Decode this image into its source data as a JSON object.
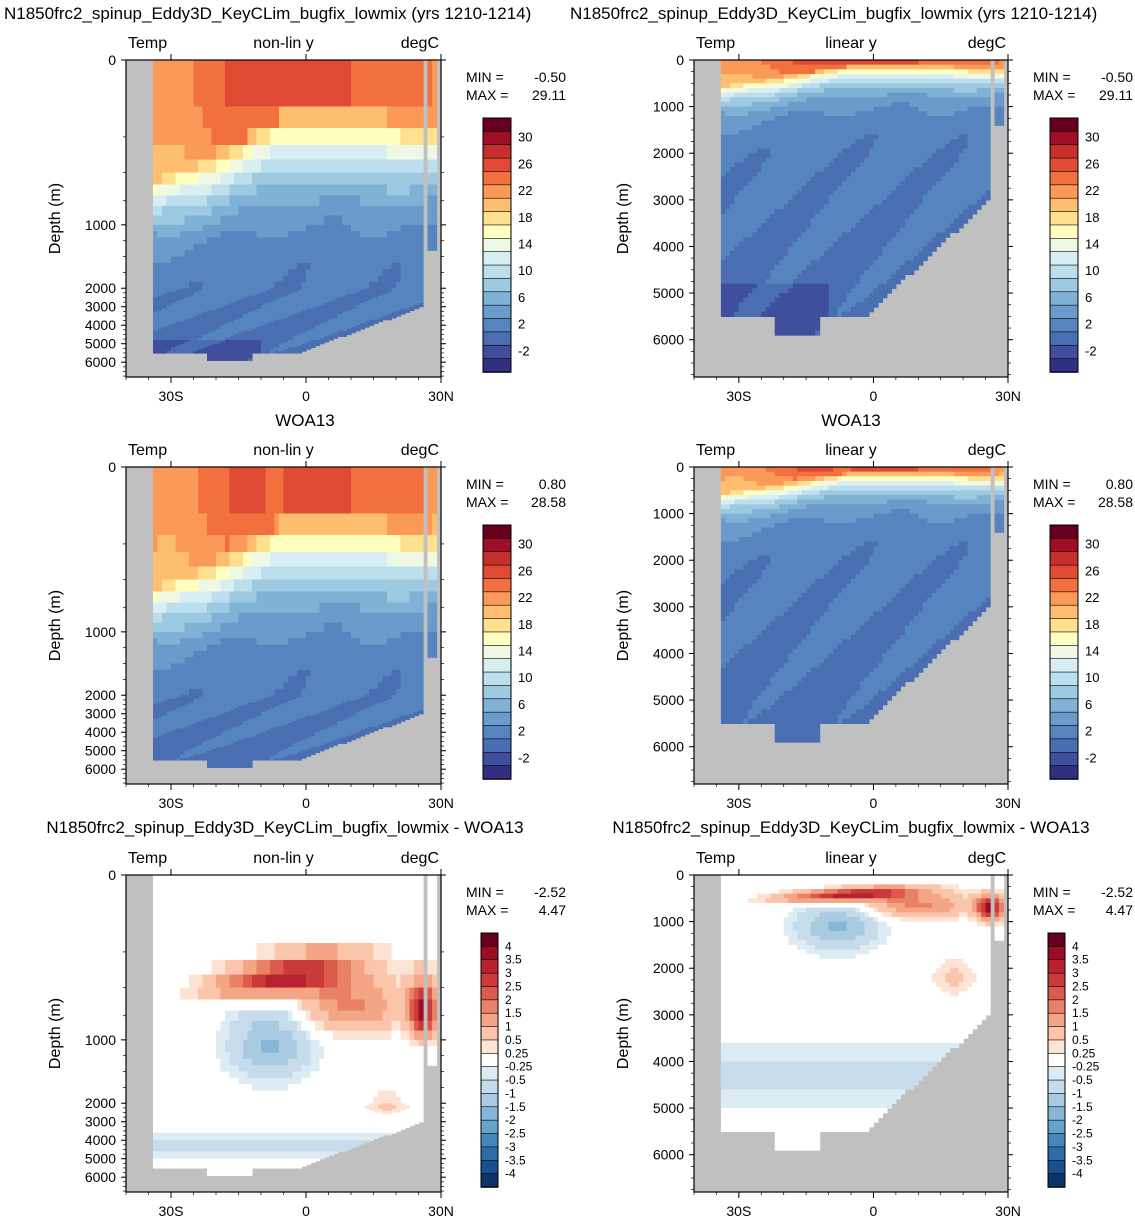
{
  "titles": {
    "row1_left": "N1850frc2_spinup_Eddy3D_KeyCLim_bugfix_lowmix (yrs 1210-1214)",
    "row1_right": "N1850frc2_spinup_Eddy3D_KeyCLim_bugfix_lowmix (yrs 1210-1214)",
    "row2_left": "WOA13",
    "row2_right": "WOA13",
    "row3_left": "N1850frc2_spinup_Eddy3D_KeyCLim_bugfix_lowmix - WOA13",
    "row3_right": "N1850frc2_spinup_Eddy3D_KeyCLim_bugfix_lowmix - WOA13"
  },
  "labels": {
    "variable": "Temp",
    "units": "degC",
    "nonlin": "non-lin y",
    "linear": "linear y",
    "ylabel": "Depth (m)",
    "min_label": "MIN =",
    "max_label": "MAX ="
  },
  "stats": {
    "model": {
      "min": "-0.50",
      "max": "29.11"
    },
    "obs": {
      "min": "0.80",
      "max": "28.58"
    },
    "diff": {
      "min": "-2.52",
      "max": "4.47"
    }
  },
  "x_ticks": [
    "30S",
    "0",
    "30N"
  ],
  "colors": {
    "land": "#c0c0c0"
  },
  "chart_data": {
    "type": "heatmap",
    "x_range_lat": [
      -40,
      30
    ],
    "y_range_depth_m": [
      0,
      6800
    ],
    "panels": [
      {
        "row": 1,
        "col": 1,
        "scale": "non-lin y",
        "field": "model",
        "min": -0.5,
        "max": 29.11
      },
      {
        "row": 1,
        "col": 2,
        "scale": "linear y",
        "field": "model",
        "min": -0.5,
        "max": 29.11
      },
      {
        "row": 2,
        "col": 1,
        "scale": "non-lin y",
        "field": "obs",
        "min": 0.8,
        "max": 28.58
      },
      {
        "row": 2,
        "col": 2,
        "scale": "linear y",
        "field": "obs",
        "min": 0.8,
        "max": 28.58
      },
      {
        "row": 3,
        "col": 1,
        "scale": "non-lin y",
        "field": "diff",
        "min": -2.52,
        "max": 4.47
      },
      {
        "row": 3,
        "col": 2,
        "scale": "linear y",
        "field": "diff",
        "min": -2.52,
        "max": 4.47
      }
    ],
    "yticks_nonlin": [
      "0",
      "1000",
      "2000",
      "3000",
      "4000",
      "5000",
      "6000"
    ],
    "yticks_linear": [
      "0",
      "1000",
      "2000",
      "3000",
      "4000",
      "5000",
      "6000"
    ],
    "temp_colorbar": {
      "labels": [
        "30",
        "26",
        "22",
        "18",
        "14",
        "10",
        "6",
        "2",
        "-2"
      ],
      "colors": [
        "#67001f",
        "#9e0e26",
        "#c62f2c",
        "#e04a34",
        "#f2703e",
        "#fb9a58",
        "#fdbe70",
        "#fee08f",
        "#ffffbf",
        "#eef8e4",
        "#d9eef3",
        "#bcdfed",
        "#9ecae1",
        "#80b2d6",
        "#6a9bcb",
        "#5684bf",
        "#4a6eb2",
        "#3f4f9e",
        "#312f80"
      ]
    },
    "diff_colorbar": {
      "labels": [
        "4",
        "3.5",
        "3",
        "2.5",
        "2",
        "1.5",
        "1",
        "0.5",
        "0.25",
        "-0.25",
        "-0.5",
        "-1",
        "-1.5",
        "-2",
        "-2.5",
        "-3",
        "-3.5",
        "-4"
      ],
      "colors": [
        "#67001f",
        "#9d0c25",
        "#b8212f",
        "#cb3a3a",
        "#dc5b4c",
        "#ea8166",
        "#f4a585",
        "#fac5aa",
        "#fde3d3",
        "#ffffff",
        "#ddecf4",
        "#c6dcec",
        "#a8cbe2",
        "#87b7d8",
        "#66a2cc",
        "#4488bd",
        "#2b6ca9",
        "#1a5090",
        "#0c3466"
      ]
    }
  }
}
